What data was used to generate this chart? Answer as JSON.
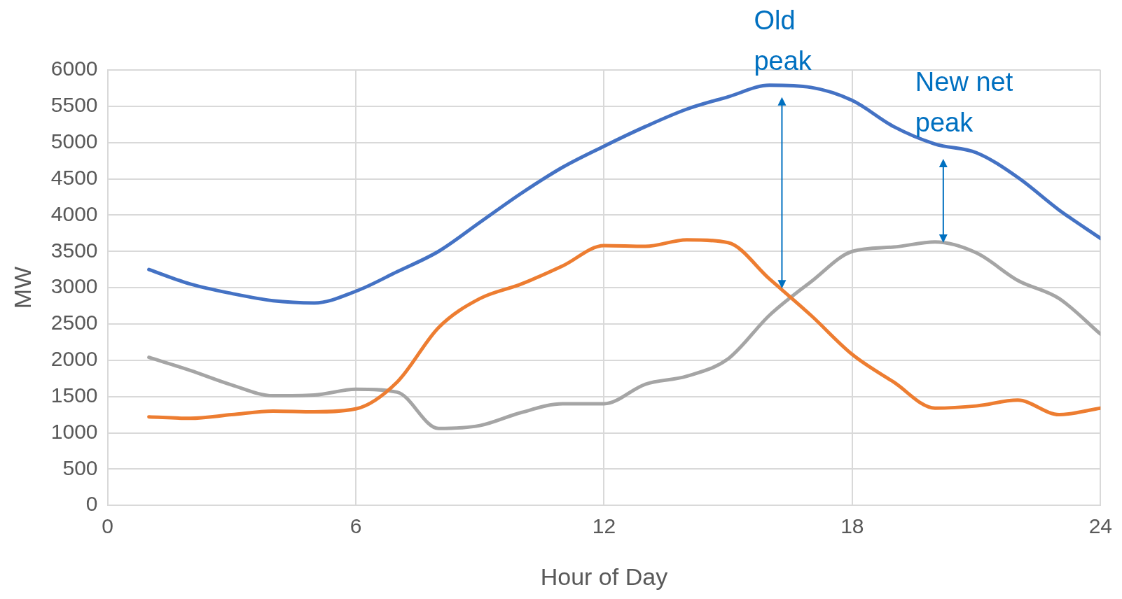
{
  "chart_data": {
    "type": "line",
    "xlabel": "Hour of Day",
    "ylabel": "MW",
    "x": [
      1,
      2,
      3,
      4,
      5,
      6,
      7,
      8,
      9,
      10,
      11,
      12,
      13,
      14,
      15,
      16,
      17,
      18,
      19,
      20,
      21,
      22,
      23,
      24
    ],
    "series": [
      {
        "color": "#4472c4",
        "values": [
          3250,
          3050,
          2920,
          2820,
          2790,
          2950,
          3220,
          3500,
          3900,
          4300,
          4660,
          4950,
          5220,
          5460,
          5630,
          5790,
          5760,
          5580,
          5220,
          4980,
          4860,
          4520,
          4070,
          3680
        ]
      },
      {
        "color": "#ed7d31",
        "values": [
          1220,
          1200,
          1250,
          1300,
          1290,
          1330,
          1700,
          2450,
          2850,
          3050,
          3300,
          3580,
          3570,
          3660,
          3620,
          3120,
          2620,
          2080,
          1700,
          1340,
          1370,
          1450,
          1250,
          1340
        ]
      },
      {
        "color": "#a5a5a5",
        "values": [
          2040,
          1860,
          1660,
          1510,
          1520,
          1600,
          1560,
          1060,
          1100,
          1280,
          1400,
          1400,
          1670,
          1780,
          2020,
          2620,
          3080,
          3500,
          3560,
          3630,
          3480,
          3100,
          2850,
          2360
        ]
      }
    ],
    "xlim": [
      0,
      24
    ],
    "xticks": [
      0,
      6,
      12,
      18,
      24
    ],
    "ylim": [
      0,
      6000
    ],
    "yticks": [
      0,
      500,
      1000,
      1500,
      2000,
      2500,
      3000,
      3500,
      4000,
      4500,
      5000,
      5500,
      6000
    ],
    "grid": true,
    "legend": false,
    "marker": "none",
    "line_style": "solid",
    "annotations": [
      {
        "text": "Old peak",
        "x": 16.3,
        "y": 5800
      },
      {
        "text": "New net peak",
        "x": 20.2,
        "y": 4950
      }
    ]
  }
}
